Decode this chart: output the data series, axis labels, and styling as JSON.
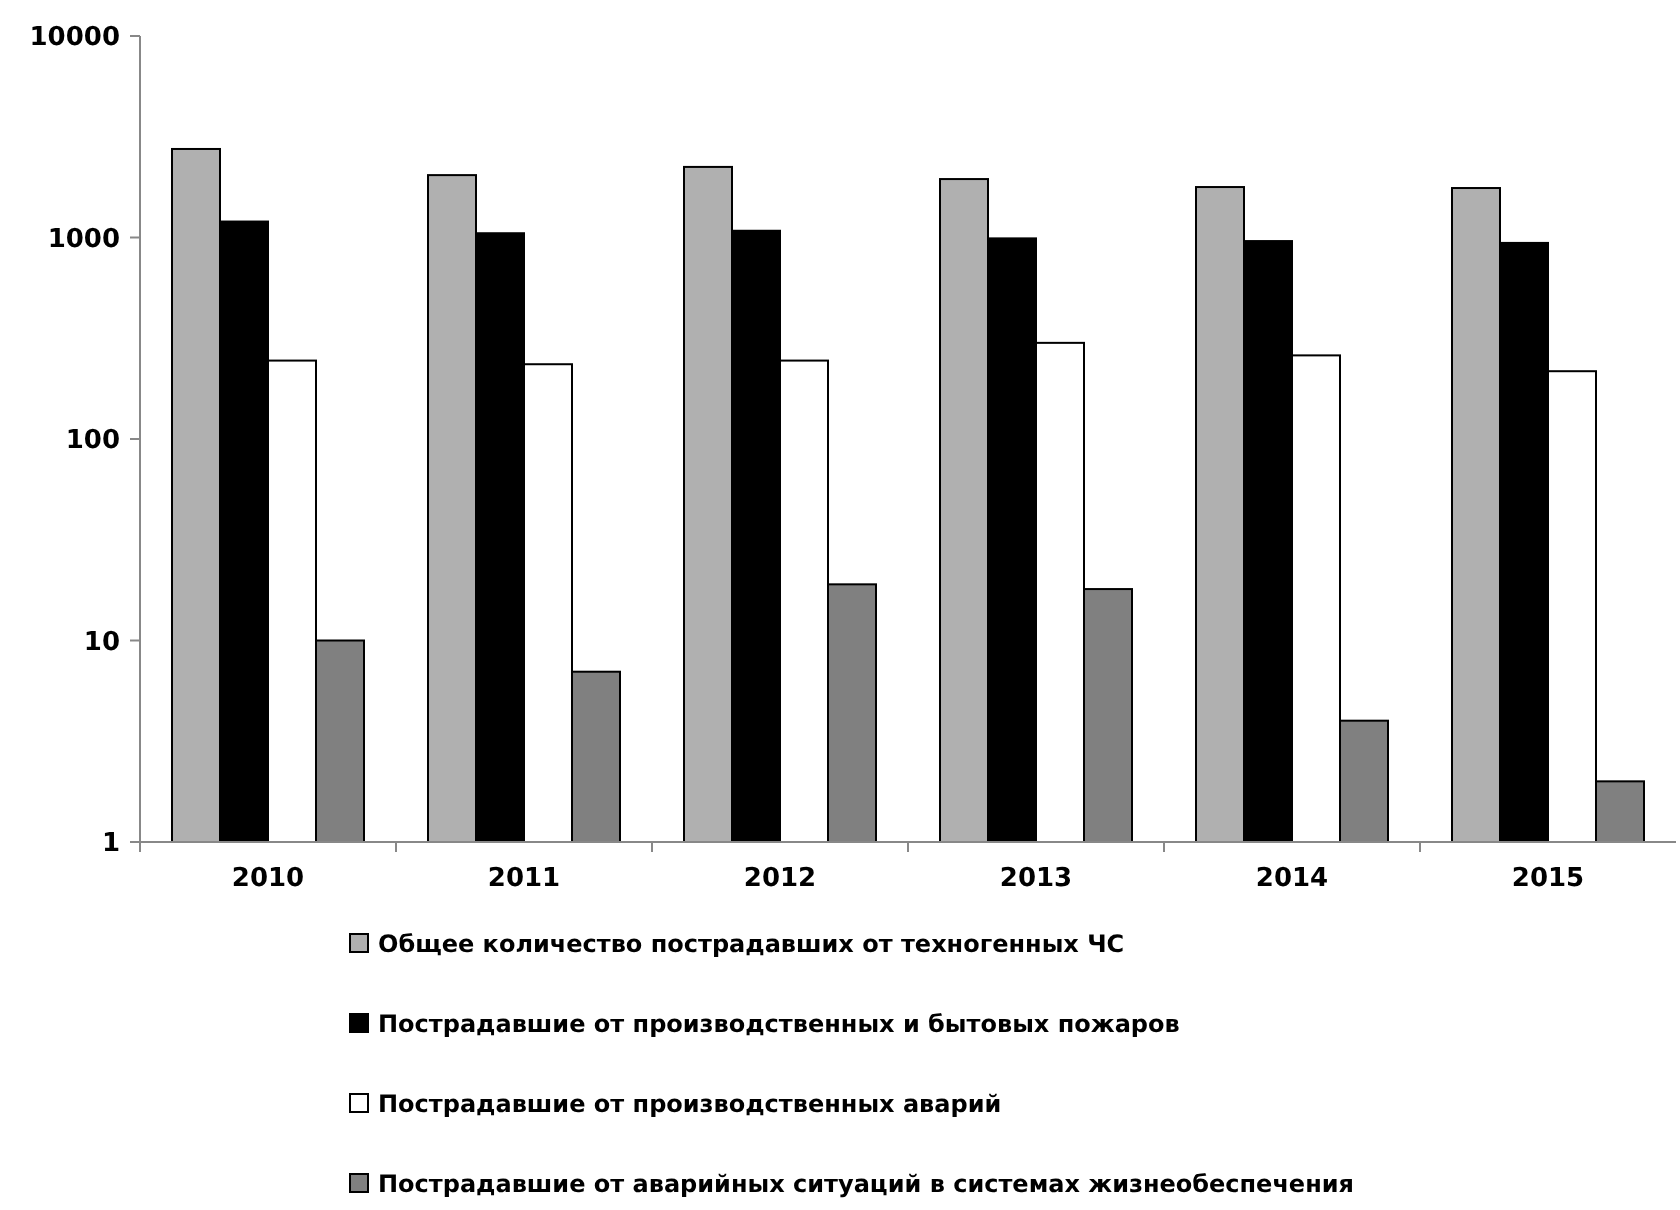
{
  "chart_data": {
    "type": "bar",
    "categories": [
      "2010",
      "2011",
      "2012",
      "2013",
      "2014",
      "2015"
    ],
    "series": [
      {
        "name": "Общее количество пострадавших от техногенных ЧС",
        "color": "#b0b0b0",
        "values": [
          2750,
          2040,
          2240,
          1950,
          1780,
          1760
        ]
      },
      {
        "name": "Пострадавшие от производственных и бытовых пожаров",
        "color": "#000000",
        "values": [
          1200,
          1050,
          1080,
          990,
          960,
          940
        ]
      },
      {
        "name": "Пострадавшие от производственных аварий",
        "color": "#ffffff",
        "values": [
          245,
          235,
          245,
          300,
          260,
          217
        ]
      },
      {
        "name": "Пострадавшие от аварийных ситуаций в системах жизнеобеспечения",
        "color": "#808080",
        "values": [
          10,
          7,
          19,
          18,
          4,
          2
        ]
      }
    ],
    "log": true,
    "ylim": [
      1,
      10000
    ],
    "yticks": [
      1,
      10,
      100,
      1000,
      10000
    ],
    "grid": false,
    "legend": "bottom"
  }
}
